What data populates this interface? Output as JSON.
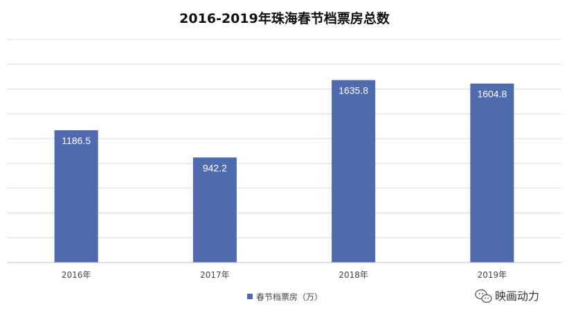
{
  "chart_data": {
    "type": "bar",
    "title": "2016-2019年珠海春节档票房总数",
    "categories": [
      "2016年",
      "2017年",
      "2018年",
      "2019年"
    ],
    "series": [
      {
        "name": "春节档票房（万）",
        "values": [
          1186.5,
          942.2,
          1635.8,
          1604.8
        ]
      }
    ],
    "data_labels": [
      "1186.5",
      "942.2",
      "1635.8",
      "1604.8"
    ],
    "ylim": [
      0,
      2000
    ],
    "grid": true,
    "legend": "bottom-center",
    "xlabel": "",
    "ylabel": ""
  },
  "colors": {
    "bar": "#4f6bae",
    "grid": "#d9d9d9",
    "axis": "#bfbfbf"
  },
  "watermark": {
    "text": "映画动力",
    "icon": "wechat-icon"
  }
}
